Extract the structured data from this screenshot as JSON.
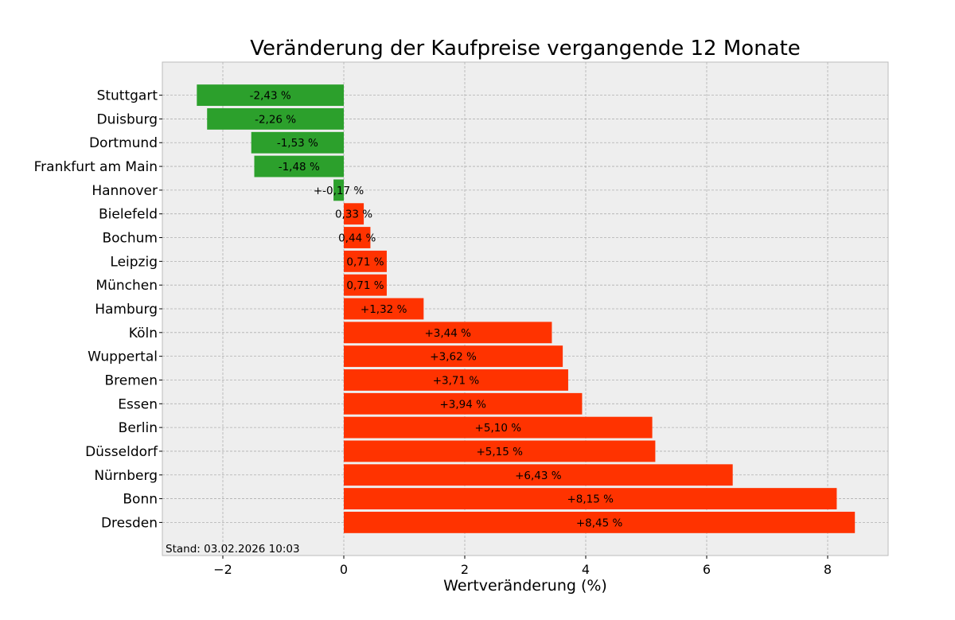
{
  "chart_data": {
    "type": "bar",
    "orientation": "horizontal",
    "title": "Veränderung der Kaufpreise vergangende 12 Monate",
    "xlabel": "Wertveränderung (%)",
    "ylabel": "",
    "xlim": [
      -3,
      9
    ],
    "xticks": [
      -2,
      0,
      2,
      4,
      6,
      8
    ],
    "xtick_labels": [
      "−2",
      "0",
      "2",
      "4",
      "6",
      "8"
    ],
    "grid": true,
    "annotation": "Stand: 03.02.2026 10:03",
    "colors": {
      "negative": "#2ca02c",
      "positive": "#ff3300",
      "background": "#eeeeee"
    },
    "categories": [
      "Stuttgart",
      "Duisburg",
      "Dortmund",
      "Frankfurt am Main",
      "Hannover",
      "Bielefeld",
      "Bochum",
      "Leipzig",
      "München",
      "Hamburg",
      "Köln",
      "Wuppertal",
      "Bremen",
      "Essen",
      "Berlin",
      "Düsseldorf",
      "Nürnberg",
      "Bonn",
      "Dresden"
    ],
    "values": [
      -2.43,
      -2.26,
      -1.53,
      -1.48,
      -0.17,
      0.33,
      0.44,
      0.71,
      0.71,
      1.32,
      3.44,
      3.62,
      3.71,
      3.94,
      5.1,
      5.15,
      6.43,
      8.15,
      8.45
    ],
    "data_labels": [
      "-2,43 %",
      "-2,26 %",
      "-1,53 %",
      "-1,48 %",
      "+-0,17 %",
      "0,33 %",
      "0,44 %",
      "0,71 %",
      "0,71 %",
      "+1,32 %",
      "+3,44 %",
      "+3,62 %",
      "+3,71 %",
      "+3,94 %",
      "+5,10 %",
      "+5,15 %",
      "+6,43 %",
      "+8,15 %",
      "+8,45 %"
    ]
  }
}
